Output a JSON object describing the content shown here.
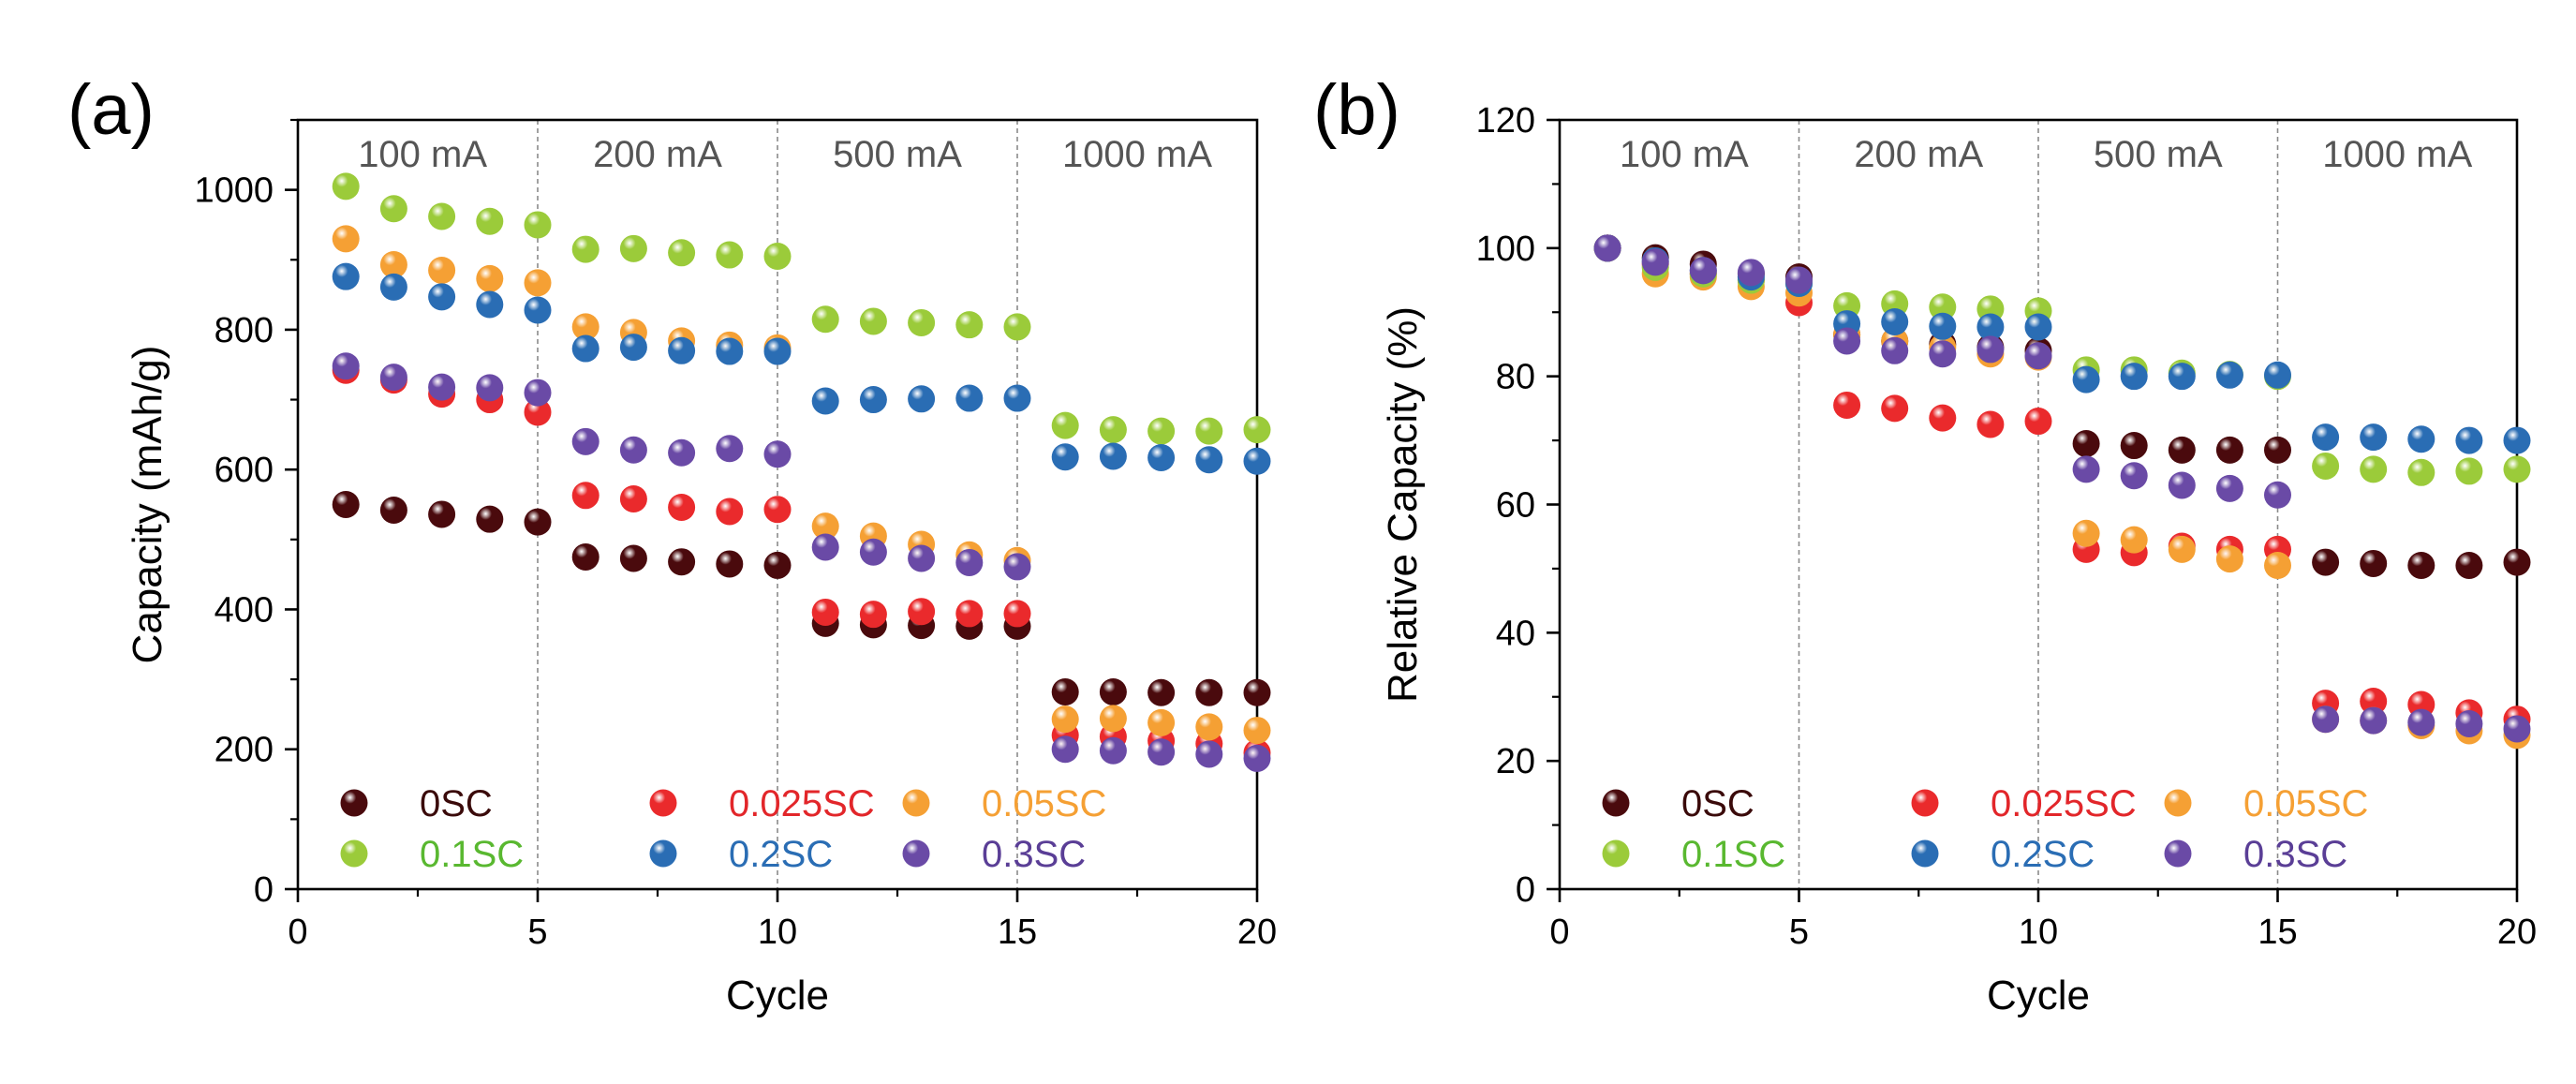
{
  "chart_data": [
    {
      "type": "scatter",
      "panel_label": "(a)",
      "title": "",
      "xlabel": "Cycle",
      "ylabel": "Capacity (mAh/g)",
      "xlim": [
        0,
        20
      ],
      "ylim": [
        0,
        1100
      ],
      "xticks": [
        0,
        5,
        10,
        15,
        20
      ],
      "yticks": [
        0,
        200,
        400,
        600,
        800,
        1000
      ],
      "x": [
        1,
        2,
        3,
        4,
        5,
        6,
        7,
        8,
        9,
        10,
        11,
        12,
        13,
        14,
        15,
        16,
        17,
        18,
        19,
        20
      ],
      "stage_dividers": [
        5,
        10,
        15
      ],
      "stage_labels": [
        {
          "text": "100 mA",
          "x": 2.6
        },
        {
          "text": "200 mA",
          "x": 7.5
        },
        {
          "text": "500 mA",
          "x": 12.5
        },
        {
          "text": "1000 mA",
          "x": 17.5
        }
      ],
      "series": [
        {
          "name": "0SC",
          "key": "s0",
          "values": [
            550,
            542,
            536,
            529,
            525,
            475,
            473,
            468,
            465,
            463,
            380,
            378,
            377,
            376,
            376,
            282,
            282,
            281,
            281,
            281
          ]
        },
        {
          "name": "0.025SC",
          "key": "s1",
          "values": [
            742,
            728,
            708,
            700,
            682,
            563,
            558,
            546,
            540,
            543,
            396,
            393,
            397,
            394,
            394,
            220,
            218,
            212,
            208,
            195
          ]
        },
        {
          "name": "0.05SC",
          "key": "s2",
          "values": [
            930,
            893,
            885,
            873,
            867,
            804,
            796,
            784,
            778,
            774,
            519,
            505,
            493,
            478,
            470,
            243,
            244,
            238,
            232,
            227
          ]
        },
        {
          "name": "0.1SC",
          "key": "s3",
          "values": [
            1005,
            973,
            962,
            955,
            950,
            915,
            916,
            910,
            907,
            905,
            815,
            812,
            810,
            807,
            804,
            663,
            657,
            655,
            655,
            657
          ]
        },
        {
          "name": "0.2SC",
          "key": "s4",
          "values": [
            876,
            861,
            847,
            836,
            828,
            773,
            775,
            770,
            769,
            769,
            698,
            700,
            701,
            702,
            702,
            618,
            619,
            617,
            614,
            612
          ]
        },
        {
          "name": "0.3SC",
          "key": "s5",
          "values": [
            748,
            732,
            718,
            717,
            710,
            640,
            628,
            624,
            630,
            622,
            489,
            482,
            473,
            467,
            461,
            200,
            198,
            196,
            193,
            187
          ]
        }
      ],
      "legend": "bottom, three columns"
    },
    {
      "type": "scatter",
      "panel_label": "(b)",
      "title": "",
      "xlabel": "Cycle",
      "ylabel": "Relative Capacity (%)",
      "xlim": [
        0,
        20
      ],
      "ylim": [
        0,
        120
      ],
      "xticks": [
        0,
        5,
        10,
        15,
        20
      ],
      "yticks": [
        0,
        20,
        40,
        60,
        80,
        100,
        120
      ],
      "x": [
        1,
        2,
        3,
        4,
        5,
        6,
        7,
        8,
        9,
        10,
        11,
        12,
        13,
        14,
        15,
        16,
        17,
        18,
        19,
        20
      ],
      "stage_dividers": [
        5,
        10,
        15
      ],
      "stage_labels": [
        {
          "text": "100 mA",
          "x": 2.6
        },
        {
          "text": "200 mA",
          "x": 7.5
        },
        {
          "text": "500 mA",
          "x": 12.5
        },
        {
          "text": "1000 mA",
          "x": 17.5
        }
      ],
      "series": [
        {
          "name": "0SC",
          "key": "s0",
          "values": [
            100,
            98.5,
            97.5,
            96,
            95.5,
            86.5,
            85.5,
            85,
            84.5,
            84,
            69.5,
            69.2,
            68.5,
            68.5,
            68.5,
            51,
            50.8,
            50.5,
            50.5,
            51
          ]
        },
        {
          "name": "0.025SC",
          "key": "s1",
          "values": [
            100,
            97.5,
            96,
            95,
            91.5,
            75.5,
            75,
            73.5,
            72.5,
            73,
            53,
            52.5,
            53.5,
            53,
            53,
            29,
            29.3,
            28.8,
            27.5,
            26.5
          ]
        },
        {
          "name": "0.05SC",
          "key": "s2",
          "values": [
            100,
            96,
            95.5,
            94,
            93,
            86.5,
            85.5,
            84.5,
            83.5,
            83,
            55.5,
            54.5,
            53,
            51.5,
            50.5,
            26.5,
            26.3,
            25.5,
            24.7,
            24
          ]
        },
        {
          "name": "0.1SC",
          "key": "s3",
          "values": [
            100,
            97,
            96,
            95,
            94.5,
            91,
            91.3,
            90.8,
            90.5,
            90.2,
            81,
            81,
            80.5,
            80.3,
            80,
            66,
            65.5,
            65,
            65.2,
            65.5
          ]
        },
        {
          "name": "0.2SC",
          "key": "s4",
          "values": [
            100,
            98,
            96.5,
            95.5,
            94.5,
            88.2,
            88.5,
            87.8,
            87.7,
            87.7,
            79.5,
            80,
            80,
            80.2,
            80.2,
            70.5,
            70.5,
            70.2,
            70,
            70
          ]
        },
        {
          "name": "0.3SC",
          "key": "s5",
          "values": [
            100,
            97.8,
            96.5,
            96.2,
            95,
            85.5,
            84,
            83.5,
            84.2,
            83.2,
            65.5,
            64.5,
            63,
            62.5,
            61.5,
            26.5,
            26.3,
            26,
            25.8,
            25
          ]
        }
      ],
      "legend": "bottom, three columns"
    }
  ],
  "colors": {
    "s0": "#4a0a0d",
    "s1": "#ea2a2c",
    "s2": "#f5a034",
    "s3": "#9bcb3a",
    "s4": "#2a6db4",
    "s5": "#6a4aa6",
    "axis": "#000000",
    "divider": "#8a8a8a",
    "stage_text": "#555555"
  },
  "legend_text_colors": {
    "s0": "#3a0a0a",
    "s1": "#e2262a",
    "s2": "#f5a034",
    "s3": "#59b830",
    "s4": "#2a6db4",
    "s5": "#5a3e96"
  }
}
